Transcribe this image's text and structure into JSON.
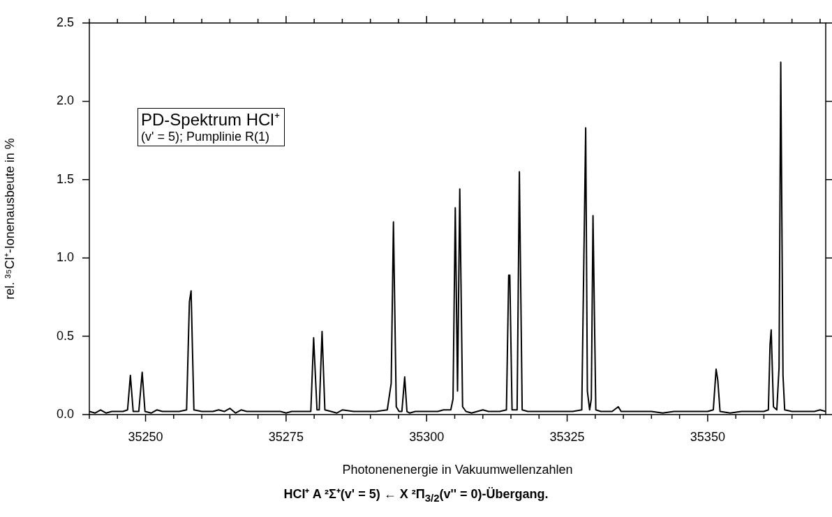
{
  "chart_data": {
    "type": "line",
    "xlabel": "Photonenenergie in Vakuumwellenzahlen",
    "ylabel": "rel. ³⁵Cl⁺-Ionenausbeute in %",
    "annotations": [
      "PD-Spektrum HCl⁺",
      "(v' = 5); Pumplinie R(1)",
      "HCl⁺ A ²Σ⁺(v' = 5) ← X ²Π$_{3/2}$(v'' = 0)-Übergang."
    ],
    "xlim": [
      35240,
      35371
    ],
    "xticks": [
      {
        "value": 35240,
        "label": null
      },
      {
        "value": 35245,
        "label": null
      },
      35250,
      {
        "value": 35255,
        "label": null
      },
      {
        "value": 35260,
        "label": null
      },
      {
        "value": 35265,
        "label": null
      },
      {
        "value": 35270,
        "label": null
      },
      35275,
      {
        "value": 35280,
        "label": null
      },
      {
        "value": 35285,
        "label": null
      },
      {
        "value": 35290,
        "label": null
      },
      {
        "value": 35295,
        "label": null
      },
      35300,
      {
        "value": 35305,
        "label": null
      },
      {
        "value": 35310,
        "label": null
      },
      {
        "value": 35315,
        "label": null
      },
      {
        "value": 35320,
        "label": null
      },
      35325,
      {
        "value": 35330,
        "label": null
      },
      {
        "value": 35335,
        "label": null
      },
      {
        "value": 35340,
        "label": null
      },
      {
        "value": 35345,
        "label": null
      },
      35350,
      {
        "value": 35355,
        "label": null
      },
      {
        "value": 35360,
        "label": null
      },
      {
        "value": 35365,
        "label": null
      },
      {
        "value": 35370,
        "label": null
      }
    ],
    "ylim": [
      0,
      2.5
    ],
    "yticks": [
      {
        "value": 0,
        "label": "0.0"
      },
      {
        "value": 0.5,
        "label": "0.5"
      },
      {
        "value": 1,
        "label": "1.0"
      },
      {
        "value": 1.5,
        "label": "1.5"
      },
      {
        "value": 2,
        "label": "2.0"
      },
      {
        "value": 2.5,
        "label": "2.5"
      }
    ],
    "grid": false,
    "legend": false,
    "marker": "none",
    "line_style": "solid",
    "series": [
      {
        "color": "#000000",
        "x": [
          35240,
          35241,
          35242,
          35243,
          35244,
          35245,
          35246,
          35246.8,
          35247.3,
          35247.8,
          35248.8,
          35249.4,
          35249.9,
          35251,
          35252,
          35253,
          35254,
          35255,
          35256,
          35257.3,
          35257.8,
          35258.1,
          35258.6,
          35260,
          35262,
          35263,
          35264,
          35265,
          35266,
          35267,
          35268,
          35270,
          35272,
          35274,
          35275,
          35276,
          35277,
          35279.4,
          35279.9,
          35280.5,
          35280.9,
          35281.4,
          35281.9,
          35283,
          35284,
          35285,
          35287,
          35289,
          35291,
          35293,
          35293.7,
          35294.1,
          35294.6,
          35295.1,
          35295.6,
          35296.1,
          35296.5,
          35297,
          35298,
          35299,
          35301,
          35302,
          35303,
          35304.3,
          35304.7,
          35305.1,
          35305.5,
          35305.9,
          35306.4,
          35307,
          35308,
          35309,
          35310,
          35311,
          35312,
          35313,
          35314.2,
          35314.6,
          35314.8,
          35315.2,
          35316.1,
          35316.5,
          35317,
          35318,
          35320,
          35322,
          35324,
          35326,
          35327.6,
          35328.3,
          35328.6,
          35329,
          35329.3,
          35329.6,
          35330.1,
          35331,
          35332,
          35333,
          35334.1,
          35334.6,
          35336,
          35338,
          35340,
          35342,
          35344,
          35346,
          35348,
          35350,
          35351,
          35351.5,
          35351.8,
          35352.2,
          35354,
          35356,
          35358,
          35360,
          35360.8,
          35361.1,
          35361.3,
          35361.7,
          35362.3,
          35362.7,
          35363,
          35363.4,
          35363.7,
          35365,
          35367,
          35369,
          35370,
          35371
        ],
        "values": [
          0.02,
          0.01,
          0.03,
          0.01,
          0.02,
          0.02,
          0.02,
          0.03,
          0.25,
          0.02,
          0.02,
          0.27,
          0.02,
          0.01,
          0.03,
          0.02,
          0.02,
          0.02,
          0.02,
          0.03,
          0.72,
          0.79,
          0.03,
          0.02,
          0.02,
          0.03,
          0.02,
          0.04,
          0.01,
          0.03,
          0.02,
          0.02,
          0.02,
          0.02,
          0.01,
          0.02,
          0.02,
          0.02,
          0.49,
          0.03,
          0.03,
          0.53,
          0.03,
          0.02,
          0.01,
          0.03,
          0.02,
          0.02,
          0.02,
          0.03,
          0.2,
          1.23,
          0.05,
          0.02,
          0.02,
          0.24,
          0.02,
          0.01,
          0.02,
          0.02,
          0.02,
          0.02,
          0.03,
          0.03,
          0.1,
          1.32,
          0.15,
          1.44,
          0.05,
          0.02,
          0.01,
          0.02,
          0.03,
          0.02,
          0.02,
          0.02,
          0.03,
          0.89,
          0.89,
          0.03,
          0.03,
          1.55,
          0.03,
          0.02,
          0.02,
          0.02,
          0.02,
          0.02,
          0.03,
          1.83,
          0.15,
          0.03,
          0.1,
          1.27,
          0.03,
          0.02,
          0.02,
          0.02,
          0.05,
          0.02,
          0.02,
          0.02,
          0.02,
          0.01,
          0.02,
          0.02,
          0.02,
          0.02,
          0.03,
          0.29,
          0.22,
          0.02,
          0.01,
          0.02,
          0.02,
          0.02,
          0.03,
          0.45,
          0.54,
          0.05,
          0.03,
          0.3,
          2.25,
          0.25,
          0.03,
          0.02,
          0.02,
          0.02,
          0.03,
          0.02
        ]
      }
    ]
  }
}
